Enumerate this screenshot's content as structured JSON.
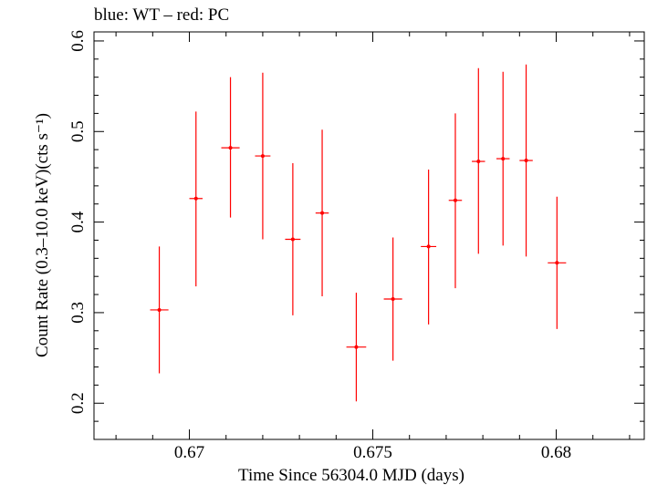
{
  "header": "blue: WT – red: PC",
  "chart_data": {
    "type": "scatter",
    "title": "blue: WT – red: PC",
    "xlabel": "Time Since 56304.0 MJD (days)",
    "ylabel": "Count Rate (0.3–10.0 keV)(cts s⁻¹)",
    "xlim": [
      0.6674,
      0.6824
    ],
    "ylim": [
      0.16,
      0.61
    ],
    "xticks": [
      0.67,
      0.675,
      0.68
    ],
    "xtick_labels": [
      "0.67",
      "0.675",
      "0.68"
    ],
    "yticks": [
      0.2,
      0.3,
      0.4,
      0.5,
      0.6
    ],
    "ytick_labels": [
      "0.2",
      "0.3",
      "0.4",
      "0.5",
      "0.6"
    ],
    "grid": false,
    "series": [
      {
        "name": "PC",
        "color": "#ff0000",
        "points": [
          {
            "x": 0.66918,
            "y": 0.303,
            "xerr": 0.00025,
            "yerr_lo": 0.07,
            "yerr_hi": 0.07
          },
          {
            "x": 0.67018,
            "y": 0.426,
            "xerr": 0.00018,
            "yerr_lo": 0.097,
            "yerr_hi": 0.096
          },
          {
            "x": 0.67112,
            "y": 0.482,
            "xerr": 0.00025,
            "yerr_lo": 0.077,
            "yerr_hi": 0.078
          },
          {
            "x": 0.672,
            "y": 0.473,
            "xerr": 0.00021,
            "yerr_lo": 0.092,
            "yerr_hi": 0.092
          },
          {
            "x": 0.67282,
            "y": 0.381,
            "xerr": 0.00021,
            "yerr_lo": 0.084,
            "yerr_hi": 0.084
          },
          {
            "x": 0.67362,
            "y": 0.41,
            "xerr": 0.00018,
            "yerr_lo": 0.092,
            "yerr_hi": 0.092
          },
          {
            "x": 0.67455,
            "y": 0.262,
            "xerr": 0.00027,
            "yerr_lo": 0.06,
            "yerr_hi": 0.06
          },
          {
            "x": 0.67555,
            "y": 0.315,
            "xerr": 0.00025,
            "yerr_lo": 0.068,
            "yerr_hi": 0.068
          },
          {
            "x": 0.67652,
            "y": 0.373,
            "xerr": 0.00021,
            "yerr_lo": 0.086,
            "yerr_hi": 0.085
          },
          {
            "x": 0.67725,
            "y": 0.424,
            "xerr": 0.00018,
            "yerr_lo": 0.097,
            "yerr_hi": 0.096
          },
          {
            "x": 0.67788,
            "y": 0.467,
            "xerr": 0.00018,
            "yerr_lo": 0.102,
            "yerr_hi": 0.103
          },
          {
            "x": 0.67855,
            "y": 0.47,
            "xerr": 0.00018,
            "yerr_lo": 0.096,
            "yerr_hi": 0.096
          },
          {
            "x": 0.67918,
            "y": 0.468,
            "xerr": 0.00018,
            "yerr_lo": 0.106,
            "yerr_hi": 0.106
          },
          {
            "x": 0.68002,
            "y": 0.355,
            "xerr": 0.00025,
            "yerr_lo": 0.073,
            "yerr_hi": 0.073
          }
        ]
      }
    ]
  }
}
